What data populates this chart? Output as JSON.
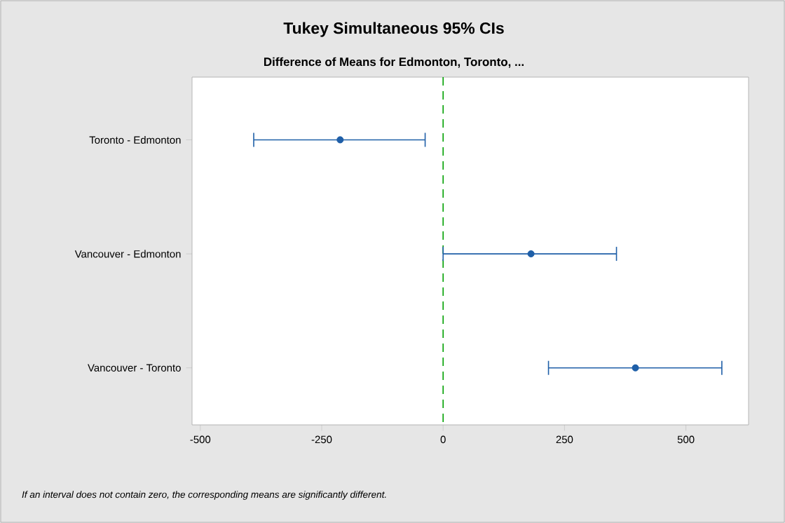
{
  "chart_data": {
    "type": "scatter",
    "orientation": "horizontal",
    "title": "Tukey Simultaneous 95% CIs",
    "subtitle": "Difference of Means for Edmonton, Toronto, ...",
    "categories": [
      "Toronto - Edmonton",
      "Vancouver - Edmonton",
      "Vancouver - Toronto"
    ],
    "values": [
      -212,
      181,
      396
    ],
    "errors": [
      [
        -390,
        -37
      ],
      [
        0,
        357
      ],
      [
        217,
        574
      ]
    ],
    "color": "#1f5fa8",
    "marker": "circle",
    "xlim": [
      -517,
      629
    ],
    "xticks": [
      -500,
      -250,
      0,
      250,
      500
    ],
    "ref_lines": [
      {
        "axis": "x",
        "value": 0,
        "color": "#00a000",
        "line_style": "dashed"
      }
    ],
    "grid": false,
    "annotations": [
      "If an interval does not contain zero, the corresponding means are significantly different."
    ]
  }
}
